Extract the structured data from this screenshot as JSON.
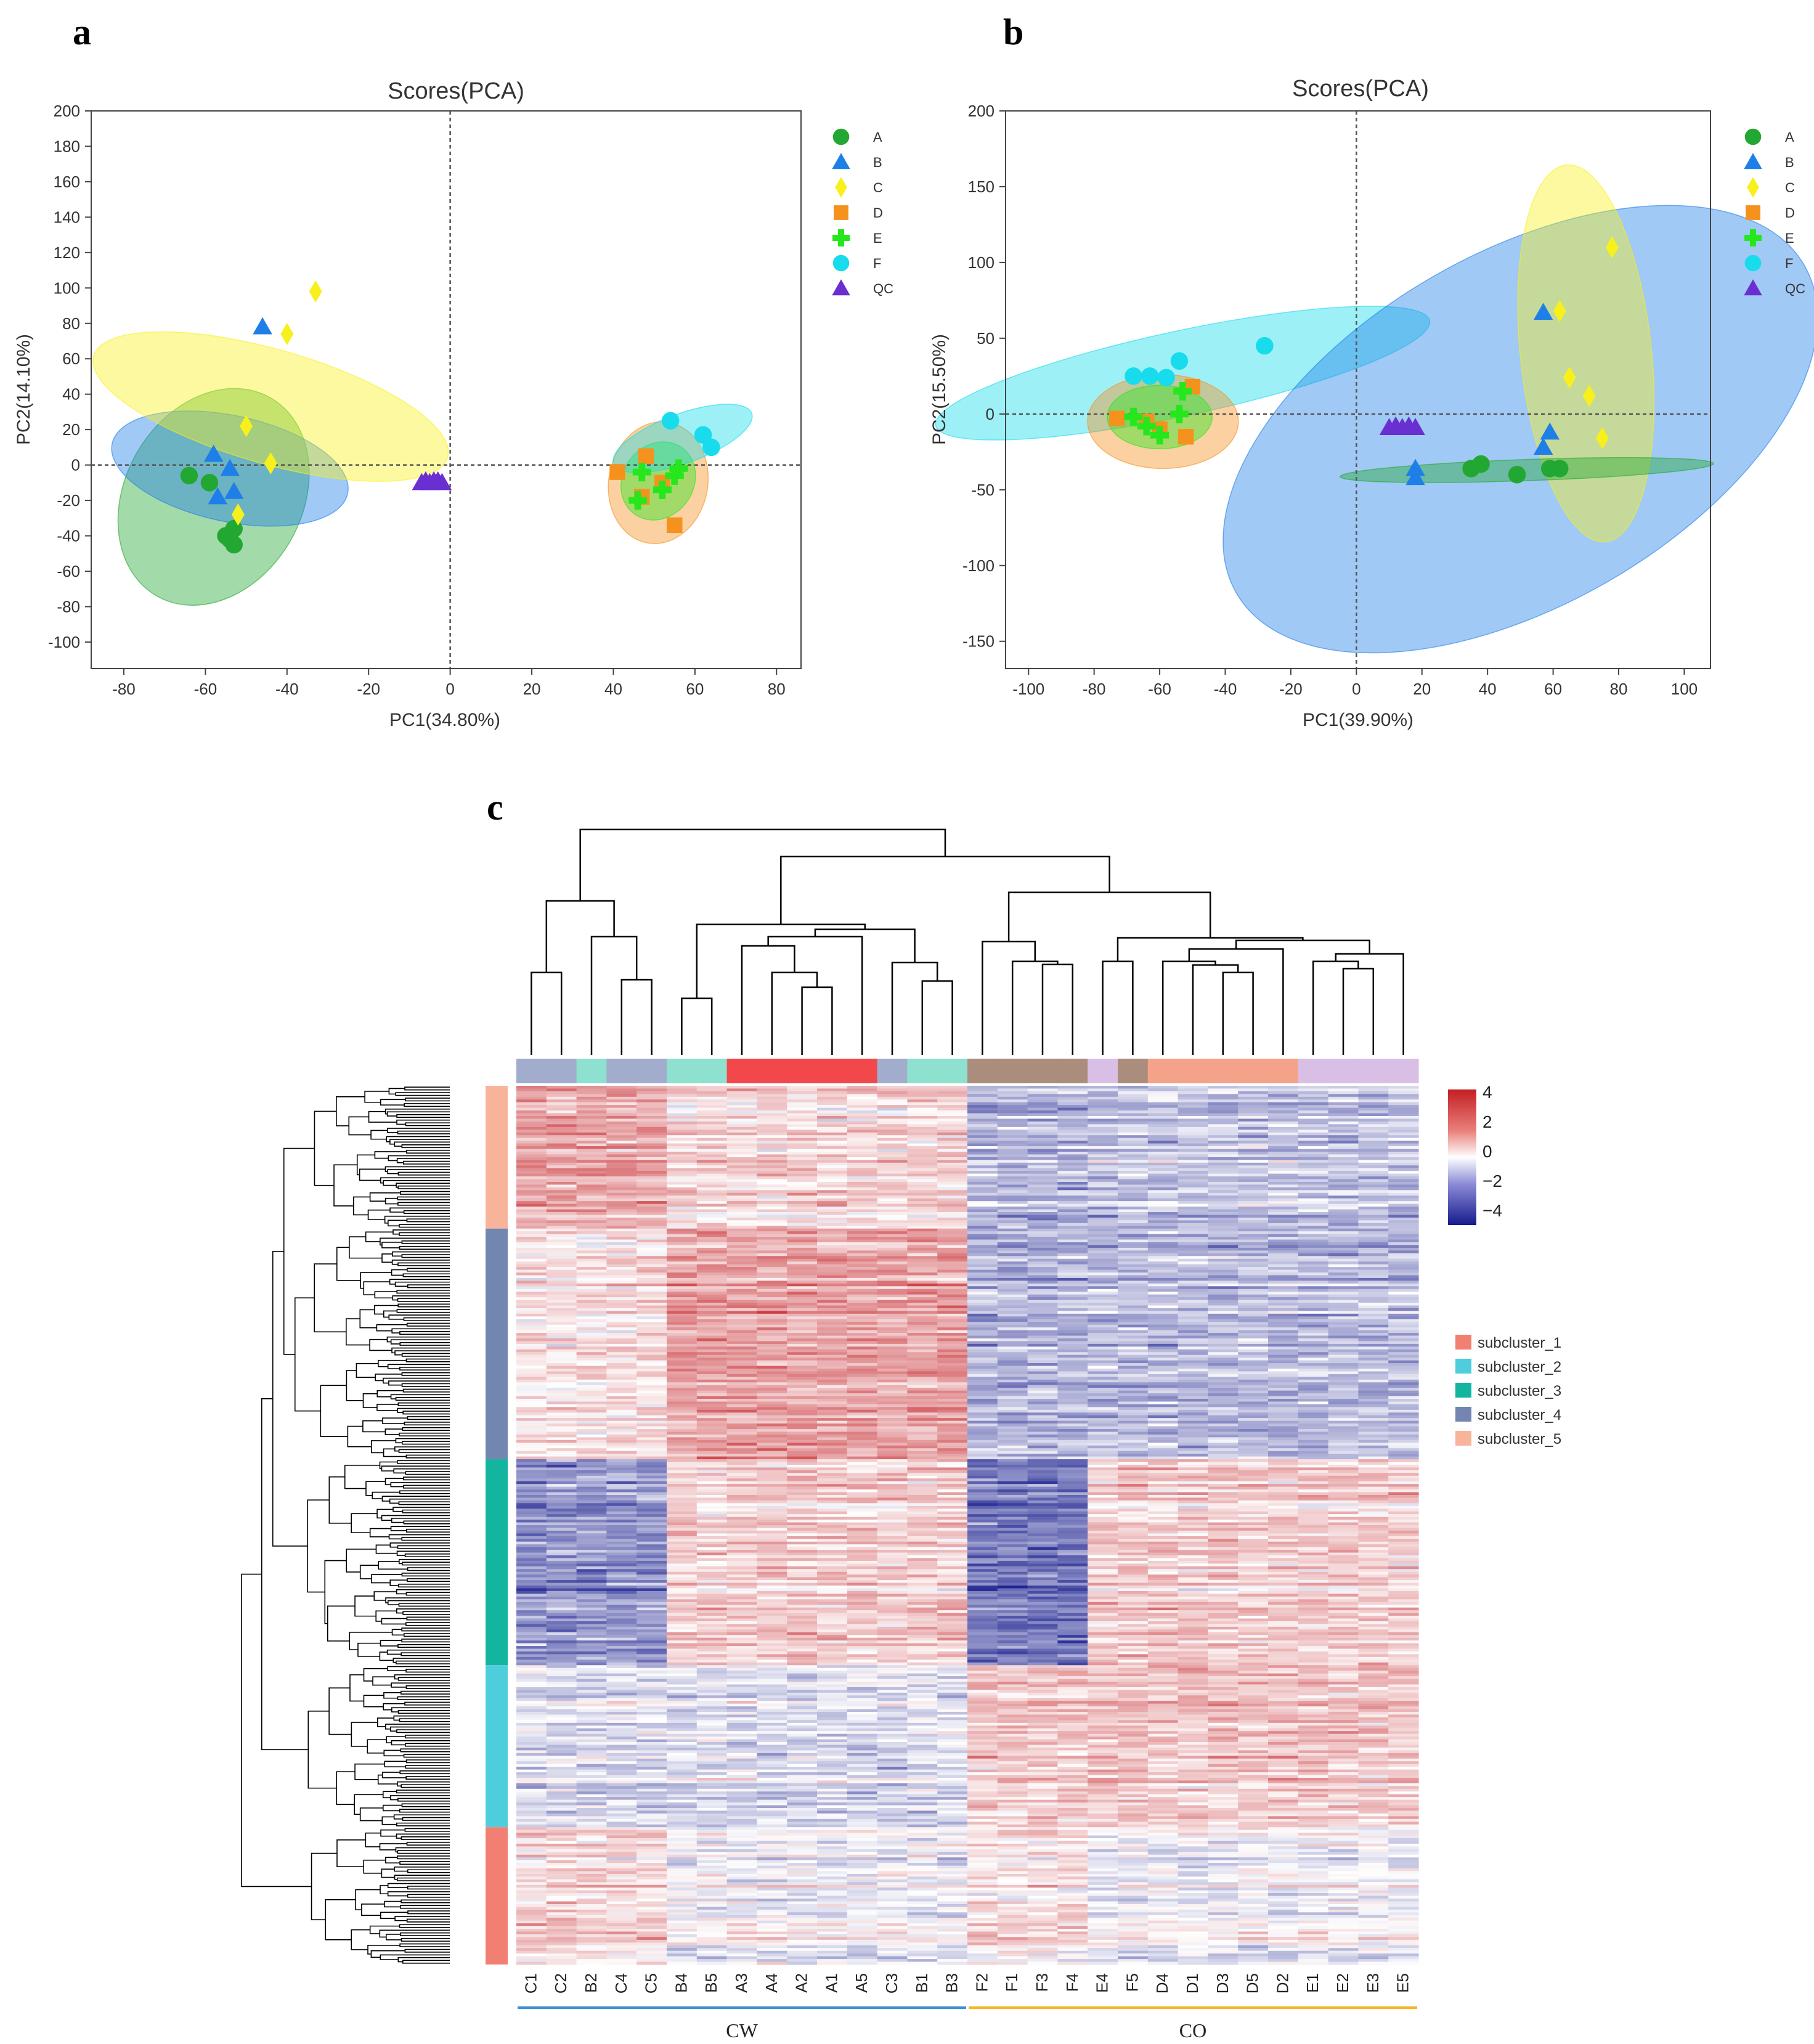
{
  "panels": {
    "a": "a",
    "b": "b",
    "c": "c"
  },
  "pca_a": {
    "type": "scatter",
    "title": "Scores(PCA)",
    "xlabel": "PC1(34.80%)",
    "ylabel": "PC2(14.10%)",
    "xlim": [
      -88,
      86
    ],
    "ylim": [
      -115,
      200
    ],
    "xticks": [
      -80,
      -60,
      -40,
      -20,
      0,
      20,
      40,
      60,
      80
    ],
    "yticks": [
      -100,
      -80,
      -60,
      -40,
      -20,
      0,
      20,
      40,
      60,
      80,
      100,
      120,
      140,
      160,
      180,
      200
    ],
    "legend": [
      "A",
      "B",
      "C",
      "D",
      "E",
      "F",
      "QC"
    ],
    "ellipses": [
      {
        "group": "A",
        "cx": -58,
        "cy": -18,
        "rx": 28,
        "ry": 50,
        "angle": -60
      },
      {
        "group": "B",
        "cx": -54,
        "cy": -2,
        "rx": 13,
        "ry": 68,
        "angle": -78
      },
      {
        "group": "C",
        "cx": -44,
        "cy": 33,
        "rx": 14,
        "ry": 104,
        "angle": -74
      },
      {
        "group": "D",
        "cx": 51,
        "cy": -10,
        "rx": 15,
        "ry": 28,
        "angle": -80
      },
      {
        "group": "E",
        "cx": 51,
        "cy": -9,
        "rx": 10,
        "ry": 20,
        "angle": -55
      },
      {
        "group": "F",
        "cx": 57,
        "cy": 15,
        "rx": 18,
        "ry": 14,
        "angle": -20
      }
    ],
    "series": [
      {
        "name": "A",
        "points": [
          [
            -64,
            -6
          ],
          [
            -59,
            -10
          ],
          [
            -55,
            -40
          ],
          [
            -53,
            -36
          ],
          [
            -53,
            -45
          ],
          [
            -54,
            -42
          ]
        ]
      },
      {
        "name": "B",
        "points": [
          [
            -46,
            78
          ],
          [
            -58,
            6
          ],
          [
            -57,
            -18
          ],
          [
            -54,
            -2
          ],
          [
            -53,
            -15
          ]
        ]
      },
      {
        "name": "C",
        "points": [
          [
            -33,
            98
          ],
          [
            -40,
            74
          ],
          [
            -50,
            22
          ],
          [
            -44,
            1
          ],
          [
            -52,
            -28
          ]
        ]
      },
      {
        "name": "D",
        "points": [
          [
            41,
            -4
          ],
          [
            48,
            5
          ],
          [
            47,
            -18
          ],
          [
            55,
            -34
          ],
          [
            52,
            -10
          ]
        ]
      },
      {
        "name": "E",
        "points": [
          [
            46,
            -20
          ],
          [
            47,
            -4
          ],
          [
            52,
            -14
          ],
          [
            55,
            -6
          ],
          [
            56,
            -2
          ]
        ]
      },
      {
        "name": "F",
        "points": [
          [
            54,
            25
          ],
          [
            62,
            17
          ],
          [
            64,
            10
          ]
        ]
      },
      {
        "name": "QC",
        "points": [
          [
            -7,
            -10
          ],
          [
            -6,
            -9
          ],
          [
            -5,
            -10
          ],
          [
            -3,
            -9
          ],
          [
            -2,
            -10
          ],
          [
            -4,
            -9
          ]
        ]
      }
    ]
  },
  "pca_b": {
    "type": "scatter",
    "title": "Scores(PCA)",
    "xlabel": "PC1(39.90%)",
    "ylabel": "PC2(15.50%)",
    "xlim": [
      -107,
      108
    ],
    "ylim": [
      -168,
      200
    ],
    "xticks": [
      -100,
      -80,
      -60,
      -40,
      -20,
      0,
      20,
      40,
      60,
      80,
      100
    ],
    "yticks": [
      -150,
      -100,
      -50,
      0,
      50,
      100,
      150,
      200
    ],
    "legend": [
      "A",
      "B",
      "C",
      "D",
      "E",
      "F",
      "QC"
    ],
    "ellipses": [
      {
        "group": "F",
        "cx": -53,
        "cy": 27,
        "rx": 77,
        "ry": 28,
        "angle": -12
      },
      {
        "group": "D",
        "cx": -59,
        "cy": -5,
        "rx": 23,
        "ry": 31,
        "angle": 0
      },
      {
        "group": "E",
        "cx": -60,
        "cy": -2,
        "rx": 16,
        "ry": 21,
        "angle": 0
      },
      {
        "group": "B",
        "cx": 50,
        "cy": -10,
        "rx": 100,
        "ry": 116,
        "angle": -30
      },
      {
        "group": "C",
        "cx": 70,
        "cy": 40,
        "rx": 20,
        "ry": 125,
        "angle": -6
      },
      {
        "group": "A",
        "cx": 52,
        "cy": -37,
        "rx": 57,
        "ry": 7,
        "angle": -2
      }
    ],
    "series": [
      {
        "name": "A",
        "points": [
          [
            35,
            -36
          ],
          [
            38,
            -33
          ],
          [
            49,
            -40
          ],
          [
            59,
            -36
          ],
          [
            62,
            -36
          ]
        ]
      },
      {
        "name": "B",
        "points": [
          [
            57,
            67
          ],
          [
            59,
            -12
          ],
          [
            57,
            -22
          ],
          [
            18,
            -36
          ],
          [
            18,
            -42
          ]
        ]
      },
      {
        "name": "C",
        "points": [
          [
            78,
            110
          ],
          [
            62,
            68
          ],
          [
            65,
            24
          ],
          [
            71,
            12
          ],
          [
            75,
            -16
          ]
        ]
      },
      {
        "name": "D",
        "points": [
          [
            -73,
            -3
          ],
          [
            -64,
            -5
          ],
          [
            -60,
            -10
          ],
          [
            -52,
            -15
          ],
          [
            -50,
            18
          ]
        ]
      },
      {
        "name": "E",
        "points": [
          [
            -68,
            -2
          ],
          [
            -60,
            -14
          ],
          [
            -54,
            0
          ],
          [
            -53,
            15
          ],
          [
            -64,
            -8
          ]
        ]
      },
      {
        "name": "F",
        "points": [
          [
            -28,
            45
          ],
          [
            -54,
            35
          ],
          [
            -63,
            25
          ],
          [
            -58,
            24
          ],
          [
            -68,
            25
          ]
        ]
      },
      {
        "name": "QC",
        "points": [
          [
            10,
            -9
          ],
          [
            12,
            -8
          ],
          [
            14,
            -9
          ],
          [
            16,
            -8
          ],
          [
            18,
            -9
          ]
        ]
      }
    ]
  },
  "heatmap": {
    "type": "heatmap",
    "columns": [
      "C1",
      "C2",
      "B2",
      "C4",
      "C5",
      "B4",
      "B5",
      "A3",
      "A4",
      "A2",
      "A1",
      "A5",
      "C3",
      "B1",
      "B3",
      "F2",
      "F1",
      "F3",
      "F4",
      "E4",
      "F5",
      "D4",
      "D1",
      "D3",
      "D5",
      "D2",
      "E1",
      "E2",
      "E3",
      "E5"
    ],
    "groups": [
      {
        "label": "CW",
        "start": 0,
        "end": 14
      },
      {
        "label": "CO",
        "start": 15,
        "end": 29
      }
    ],
    "colorbar": {
      "ticks": [
        "4",
        "2",
        "0",
        "−2",
        "−4"
      ]
    },
    "subclusters": [
      "subcluster_1",
      "subcluster_2",
      "subcluster_3",
      "subcluster_4",
      "subcluster_5"
    ]
  },
  "colors": {
    "A": "#22a832",
    "B": "#1f7fe8",
    "C": "#f8f01c",
    "D": "#f5921e",
    "E": "#26e61c",
    "F": "#18dcec",
    "QC": "#6a2fd0",
    "subcluster_1": "#f28072",
    "subcluster_2": "#4ecddc",
    "subcluster_3": "#14b59e",
    "subcluster_4": "#7286b0",
    "subcluster_5": "#f7b49a"
  }
}
